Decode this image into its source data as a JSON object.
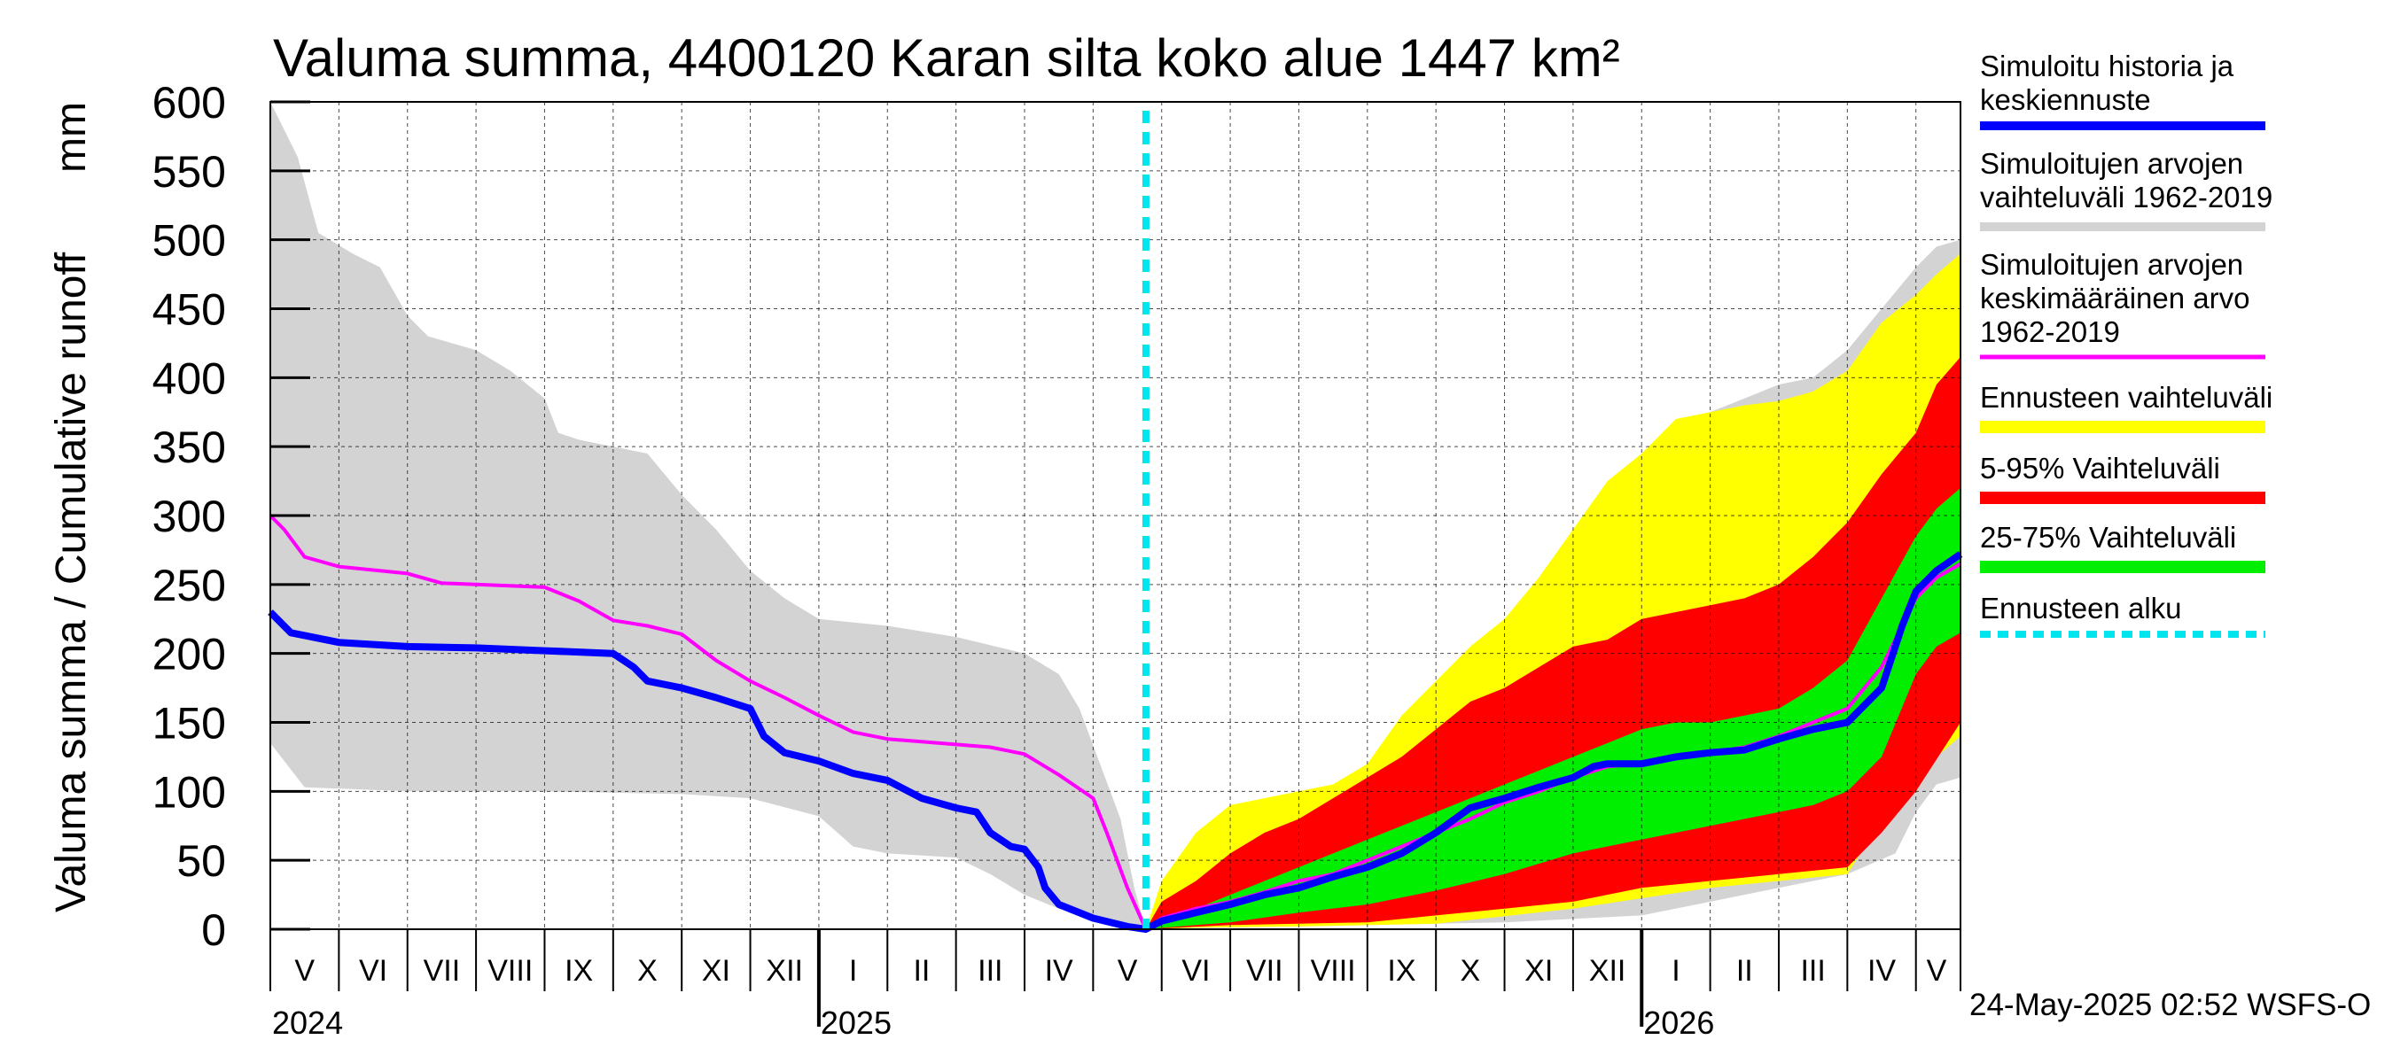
{
  "chart_data": {
    "type": "area",
    "title": "Valuma summa, 4400120 Karan silta koko alue 1447 km²",
    "ylabel_fi": "Valuma summa / Cumulative runoff",
    "ylabel_unit": "mm",
    "ylim": [
      0,
      600
    ],
    "yticks": [
      0,
      50,
      100,
      150,
      200,
      250,
      300,
      350,
      400,
      450,
      500,
      550,
      600
    ],
    "grid": true,
    "x_unit": "months since 1 May 2024",
    "xlim": [
      0,
      24.65
    ],
    "months": [
      {
        "label": "V",
        "x": 0.5
      },
      {
        "label": "VI",
        "x": 1.5
      },
      {
        "label": "VII",
        "x": 2.5
      },
      {
        "label": "VIII",
        "x": 3.5
      },
      {
        "label": "IX",
        "x": 4.5
      },
      {
        "label": "X",
        "x": 5.5
      },
      {
        "label": "XI",
        "x": 6.5
      },
      {
        "label": "XII",
        "x": 7.5
      },
      {
        "label": "I",
        "x": 8.5
      },
      {
        "label": "II",
        "x": 9.5
      },
      {
        "label": "III",
        "x": 10.5
      },
      {
        "label": "IV",
        "x": 11.5
      },
      {
        "label": "V",
        "x": 12.5
      },
      {
        "label": "VI",
        "x": 13.5
      },
      {
        "label": "VII",
        "x": 14.5
      },
      {
        "label": "VIII",
        "x": 15.5
      },
      {
        "label": "IX",
        "x": 16.5
      },
      {
        "label": "X",
        "x": 17.5
      },
      {
        "label": "XI",
        "x": 18.5
      },
      {
        "label": "XII",
        "x": 19.5
      },
      {
        "label": "I",
        "x": 20.5
      },
      {
        "label": "II",
        "x": 21.5
      },
      {
        "label": "III",
        "x": 22.5
      },
      {
        "label": "IV",
        "x": 23.5
      },
      {
        "label": "V",
        "x": 24.3
      }
    ],
    "years": [
      {
        "label": "2024",
        "x": 0
      },
      {
        "label": "2025",
        "x": 8
      },
      {
        "label": "2026",
        "x": 20
      }
    ],
    "forecast_start": 12.77,
    "historical_range": {
      "name": "Simuloitujen arvojen vaihteluväli 1962-2019",
      "color": "#d3d3d3",
      "upper": [
        [
          0,
          600
        ],
        [
          0.4,
          560
        ],
        [
          0.7,
          505
        ],
        [
          1.2,
          490
        ],
        [
          1.6,
          480
        ],
        [
          2,
          445
        ],
        [
          2.3,
          430
        ],
        [
          3,
          420
        ],
        [
          3.5,
          405
        ],
        [
          4,
          385
        ],
        [
          4.2,
          360
        ],
        [
          4.5,
          355
        ],
        [
          5,
          350
        ],
        [
          5.5,
          345
        ],
        [
          6,
          315
        ],
        [
          6.5,
          290
        ],
        [
          7,
          260
        ],
        [
          7.5,
          240
        ],
        [
          8,
          225
        ],
        [
          9,
          220
        ],
        [
          10,
          212
        ],
        [
          11,
          200
        ],
        [
          11.5,
          185
        ],
        [
          11.8,
          160
        ],
        [
          12.1,
          120
        ],
        [
          12.4,
          80
        ],
        [
          12.6,
          30
        ],
        [
          12.77,
          0
        ],
        [
          13,
          30
        ],
        [
          13.5,
          50
        ],
        [
          14,
          70
        ],
        [
          14.5,
          80
        ],
        [
          15,
          90
        ],
        [
          15.5,
          100
        ],
        [
          16,
          110
        ],
        [
          16.5,
          125
        ],
        [
          17,
          145
        ],
        [
          17.5,
          170
        ],
        [
          18,
          200
        ],
        [
          18.5,
          230
        ],
        [
          19,
          260
        ],
        [
          19.5,
          300
        ],
        [
          20,
          330
        ],
        [
          20.5,
          355
        ],
        [
          21,
          375
        ],
        [
          21.5,
          385
        ],
        [
          22,
          395
        ],
        [
          22.5,
          400
        ],
        [
          23,
          420
        ],
        [
          23.5,
          450
        ],
        [
          24,
          480
        ],
        [
          24.3,
          495
        ],
        [
          24.65,
          500
        ]
      ],
      "lower": [
        [
          0,
          135
        ],
        [
          0.5,
          103
        ],
        [
          2,
          100
        ],
        [
          4,
          100
        ],
        [
          6,
          98
        ],
        [
          7,
          95
        ],
        [
          8,
          82
        ],
        [
          8.5,
          60
        ],
        [
          9,
          55
        ],
        [
          10,
          52
        ],
        [
          10.5,
          40
        ],
        [
          11,
          25
        ],
        [
          11.5,
          15
        ],
        [
          12,
          8
        ],
        [
          12.5,
          3
        ],
        [
          12.77,
          0
        ],
        [
          13,
          1
        ],
        [
          14,
          2
        ],
        [
          16,
          3
        ],
        [
          18,
          5
        ],
        [
          20,
          10
        ],
        [
          21,
          20
        ],
        [
          22,
          30
        ],
        [
          23,
          40
        ],
        [
          23.7,
          55
        ],
        [
          24,
          85
        ],
        [
          24.3,
          105
        ],
        [
          24.65,
          110
        ]
      ]
    },
    "forecast_range": {
      "name": "Ennusteen vaihteluväli",
      "color": "#ffff00",
      "upper": [
        [
          12.77,
          0
        ],
        [
          13,
          35
        ],
        [
          13.5,
          70
        ],
        [
          14,
          90
        ],
        [
          15,
          100
        ],
        [
          15.5,
          105
        ],
        [
          16,
          120
        ],
        [
          16.5,
          155
        ],
        [
          17,
          180
        ],
        [
          17.5,
          205
        ],
        [
          18,
          225
        ],
        [
          18.5,
          255
        ],
        [
          19,
          290
        ],
        [
          19.5,
          325
        ],
        [
          20,
          345
        ],
        [
          20.5,
          370
        ],
        [
          21,
          375
        ],
        [
          21.5,
          380
        ],
        [
          22,
          383
        ],
        [
          22.5,
          390
        ],
        [
          23,
          405
        ],
        [
          23.5,
          440
        ],
        [
          24,
          460
        ],
        [
          24.3,
          475
        ],
        [
          24.65,
          490
        ]
      ],
      "lower": [
        [
          12.77,
          0
        ],
        [
          13.5,
          1
        ],
        [
          15,
          2
        ],
        [
          17,
          4
        ],
        [
          19,
          15
        ],
        [
          21,
          30
        ],
        [
          22,
          35
        ],
        [
          23,
          40
        ],
        [
          23.5,
          80
        ],
        [
          24,
          100
        ],
        [
          24.3,
          125
        ],
        [
          24.65,
          140
        ]
      ]
    },
    "range_5_95": {
      "name": "5-95% Vaihteluväli",
      "color": "#ff0000",
      "upper": [
        [
          12.77,
          0
        ],
        [
          13,
          20
        ],
        [
          13.5,
          35
        ],
        [
          14,
          55
        ],
        [
          14.5,
          70
        ],
        [
          15,
          80
        ],
        [
          15.5,
          95
        ],
        [
          16,
          110
        ],
        [
          16.5,
          125
        ],
        [
          17,
          145
        ],
        [
          17.5,
          165
        ],
        [
          18,
          175
        ],
        [
          18.5,
          190
        ],
        [
          19,
          205
        ],
        [
          19.5,
          210
        ],
        [
          20,
          225
        ],
        [
          20.5,
          230
        ],
        [
          21,
          235
        ],
        [
          21.5,
          240
        ],
        [
          22,
          250
        ],
        [
          22.5,
          270
        ],
        [
          23,
          295
        ],
        [
          23.5,
          330
        ],
        [
          24,
          360
        ],
        [
          24.3,
          395
        ],
        [
          24.65,
          415
        ]
      ],
      "lower": [
        [
          12.77,
          0
        ],
        [
          14,
          3
        ],
        [
          16,
          5
        ],
        [
          17,
          10
        ],
        [
          18,
          15
        ],
        [
          19,
          20
        ],
        [
          20,
          30
        ],
        [
          21,
          35
        ],
        [
          22,
          40
        ],
        [
          23,
          45
        ],
        [
          23.5,
          70
        ],
        [
          24,
          100
        ],
        [
          24.65,
          150
        ]
      ]
    },
    "range_25_75": {
      "name": "25-75% Vaihteluväli",
      "color": "#00ee00",
      "upper": [
        [
          12.77,
          0
        ],
        [
          13,
          8
        ],
        [
          13.5,
          15
        ],
        [
          14,
          25
        ],
        [
          14.5,
          35
        ],
        [
          15,
          45
        ],
        [
          15.5,
          55
        ],
        [
          16,
          65
        ],
        [
          16.5,
          75
        ],
        [
          17,
          85
        ],
        [
          17.5,
          95
        ],
        [
          18,
          105
        ],
        [
          18.5,
          115
        ],
        [
          19,
          125
        ],
        [
          19.5,
          135
        ],
        [
          20,
          145
        ],
        [
          20.5,
          150
        ],
        [
          21,
          150
        ],
        [
          21.5,
          155
        ],
        [
          22,
          160
        ],
        [
          22.5,
          175
        ],
        [
          23,
          195
        ],
        [
          23.5,
          240
        ],
        [
          24,
          285
        ],
        [
          24.3,
          305
        ],
        [
          24.65,
          320
        ]
      ],
      "lower": [
        [
          12.77,
          0
        ],
        [
          13.5,
          3
        ],
        [
          14,
          5
        ],
        [
          15,
          12
        ],
        [
          16,
          18
        ],
        [
          17,
          28
        ],
        [
          18,
          40
        ],
        [
          19,
          55
        ],
        [
          20,
          65
        ],
        [
          21,
          75
        ],
        [
          22,
          85
        ],
        [
          22.5,
          90
        ],
        [
          23,
          100
        ],
        [
          23.5,
          125
        ],
        [
          24,
          185
        ],
        [
          24.3,
          205
        ],
        [
          24.65,
          215
        ]
      ]
    },
    "mean": {
      "name": "Simuloitujen arvojen keskimääräinen arvo 1962-2019",
      "color": "#ff00ff",
      "points": [
        [
          0,
          300
        ],
        [
          0.2,
          290
        ],
        [
          0.5,
          270
        ],
        [
          1,
          263
        ],
        [
          2,
          258
        ],
        [
          2.5,
          251
        ],
        [
          3,
          250
        ],
        [
          4,
          248
        ],
        [
          4.5,
          238
        ],
        [
          5,
          224
        ],
        [
          5.5,
          220
        ],
        [
          6,
          214
        ],
        [
          6.5,
          195
        ],
        [
          7,
          180
        ],
        [
          7.5,
          168
        ],
        [
          8,
          155
        ],
        [
          8.5,
          143
        ],
        [
          9,
          138
        ],
        [
          9.5,
          136
        ],
        [
          10,
          134
        ],
        [
          10.5,
          132
        ],
        [
          11,
          127
        ],
        [
          11.5,
          112
        ],
        [
          12,
          95
        ],
        [
          12.2,
          70
        ],
        [
          12.5,
          30
        ],
        [
          12.77,
          0
        ],
        [
          13,
          8
        ],
        [
          13.5,
          15
        ],
        [
          14,
          20
        ],
        [
          14.5,
          27
        ],
        [
          15,
          35
        ],
        [
          15.5,
          40
        ],
        [
          16,
          50
        ],
        [
          16.5,
          60
        ],
        [
          17,
          70
        ],
        [
          17.5,
          80
        ],
        [
          18,
          92
        ],
        [
          18.5,
          100
        ],
        [
          19,
          110
        ],
        [
          19.5,
          118
        ],
        [
          20,
          120
        ],
        [
          20.5,
          125
        ],
        [
          21,
          128
        ],
        [
          21.5,
          132
        ],
        [
          22,
          140
        ],
        [
          22.5,
          150
        ],
        [
          23,
          160
        ],
        [
          23.5,
          190
        ],
        [
          24,
          240
        ],
        [
          24.3,
          255
        ],
        [
          24.65,
          265
        ]
      ]
    },
    "median_history": {
      "name": "Simuloitu historia ja keskiennuste",
      "color": "#0000ff",
      "points": [
        [
          0,
          230
        ],
        [
          0.3,
          215
        ],
        [
          1,
          208
        ],
        [
          2,
          205
        ],
        [
          3,
          204
        ],
        [
          4,
          202
        ],
        [
          4.5,
          201
        ],
        [
          5,
          200
        ],
        [
          5.3,
          190
        ],
        [
          5.5,
          180
        ],
        [
          6,
          175
        ],
        [
          6.5,
          168
        ],
        [
          7,
          160
        ],
        [
          7.2,
          140
        ],
        [
          7.5,
          128
        ],
        [
          8,
          122
        ],
        [
          8.5,
          113
        ],
        [
          9,
          108
        ],
        [
          9.5,
          95
        ],
        [
          10,
          88
        ],
        [
          10.3,
          85
        ],
        [
          10.5,
          70
        ],
        [
          10.8,
          60
        ],
        [
          11,
          58
        ],
        [
          11.2,
          45
        ],
        [
          11.3,
          30
        ],
        [
          11.5,
          18
        ],
        [
          12,
          8
        ],
        [
          12.5,
          2
        ],
        [
          12.77,
          0
        ],
        [
          13,
          6
        ],
        [
          13.5,
          12
        ],
        [
          14,
          18
        ],
        [
          14.5,
          25
        ],
        [
          15,
          30
        ],
        [
          15.5,
          38
        ],
        [
          16,
          45
        ],
        [
          16.5,
          55
        ],
        [
          17,
          70
        ],
        [
          17.5,
          88
        ],
        [
          18,
          95
        ],
        [
          18.5,
          103
        ],
        [
          19,
          110
        ],
        [
          19.3,
          118
        ],
        [
          19.5,
          120
        ],
        [
          20,
          120
        ],
        [
          20.5,
          125
        ],
        [
          21,
          128
        ],
        [
          21.5,
          130
        ],
        [
          22,
          138
        ],
        [
          22.5,
          145
        ],
        [
          23,
          150
        ],
        [
          23.5,
          175
        ],
        [
          23.8,
          220
        ],
        [
          24,
          245
        ],
        [
          24.3,
          260
        ],
        [
          24.65,
          272
        ]
      ]
    },
    "legend": [
      {
        "lines": [
          "Simuloitu historia ja",
          "keskiennuste"
        ],
        "color": "#0000ff",
        "style": "thick"
      },
      {
        "lines": [
          "Simuloitujen arvojen",
          "vaihteluväli 1962-2019"
        ],
        "color": "#d3d3d3",
        "style": "thick"
      },
      {
        "lines": [
          "Simuloitujen arvojen",
          "keskimääräinen arvo",
          "   1962-2019"
        ],
        "color": "#ff00ff",
        "style": "thin"
      },
      {
        "lines": [
          "Ennusteen vaihteluväli"
        ],
        "color": "#ffff00",
        "style": "band"
      },
      {
        "lines": [
          "5-95% Vaihteluväli"
        ],
        "color": "#ff0000",
        "style": "band"
      },
      {
        "lines": [
          "25-75% Vaihteluväli"
        ],
        "color": "#00ee00",
        "style": "band"
      },
      {
        "lines": [
          "Ennusteen alku"
        ],
        "color": "#00e5ee",
        "style": "dotted"
      }
    ],
    "timestamp": "24-May-2025 02:52 WSFS-O"
  }
}
